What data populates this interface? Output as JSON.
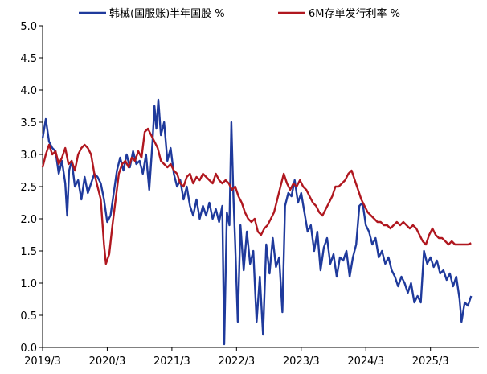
{
  "chart_data": {
    "type": "line",
    "title": "",
    "xlabel": "",
    "ylabel": "",
    "ylim": [
      0,
      5
    ],
    "yticks": [
      "0.0",
      "0.5",
      "1.0",
      "1.5",
      "2.0",
      "2.5",
      "3.0",
      "3.5",
      "4.0",
      "4.5",
      "5.0"
    ],
    "xlim": [
      2019.17,
      2025.92
    ],
    "xticks": [
      {
        "x": 2019.17,
        "label": "2019/3"
      },
      {
        "x": 2020.17,
        "label": "2020/3"
      },
      {
        "x": 2021.17,
        "label": "2021/3"
      },
      {
        "x": 2022.17,
        "label": "2022/3"
      },
      {
        "x": 2023.17,
        "label": "2023/3"
      },
      {
        "x": 2024.17,
        "label": "2024/3"
      },
      {
        "x": 2025.17,
        "label": "2025/3"
      }
    ],
    "grid": false,
    "legend_position": "top",
    "series": [
      {
        "name": "韩械(国服账)半年国股 %",
        "color": "#1F3A9C",
        "points": [
          [
            2019.17,
            3.25
          ],
          [
            2019.22,
            3.55
          ],
          [
            2019.27,
            3.2
          ],
          [
            2019.32,
            3.1
          ],
          [
            2019.37,
            3.05
          ],
          [
            2019.42,
            2.7
          ],
          [
            2019.47,
            2.9
          ],
          [
            2019.52,
            2.55
          ],
          [
            2019.55,
            2.05
          ],
          [
            2019.58,
            2.75
          ],
          [
            2019.62,
            2.9
          ],
          [
            2019.67,
            2.5
          ],
          [
            2019.72,
            2.6
          ],
          [
            2019.77,
            2.3
          ],
          [
            2019.82,
            2.65
          ],
          [
            2019.87,
            2.4
          ],
          [
            2019.92,
            2.55
          ],
          [
            2019.97,
            2.7
          ],
          [
            2020.02,
            2.65
          ],
          [
            2020.07,
            2.55
          ],
          [
            2020.12,
            2.3
          ],
          [
            2020.17,
            1.95
          ],
          [
            2020.22,
            2.05
          ],
          [
            2020.27,
            2.4
          ],
          [
            2020.32,
            2.75
          ],
          [
            2020.37,
            2.95
          ],
          [
            2020.42,
            2.75
          ],
          [
            2020.47,
            3.0
          ],
          [
            2020.52,
            2.8
          ],
          [
            2020.57,
            3.05
          ],
          [
            2020.62,
            2.85
          ],
          [
            2020.67,
            2.9
          ],
          [
            2020.72,
            2.7
          ],
          [
            2020.77,
            3.0
          ],
          [
            2020.82,
            2.45
          ],
          [
            2020.87,
            3.2
          ],
          [
            2020.9,
            3.75
          ],
          [
            2020.93,
            3.4
          ],
          [
            2020.96,
            3.85
          ],
          [
            2021.0,
            3.3
          ],
          [
            2021.05,
            3.5
          ],
          [
            2021.1,
            2.9
          ],
          [
            2021.15,
            3.1
          ],
          [
            2021.2,
            2.7
          ],
          [
            2021.25,
            2.5
          ],
          [
            2021.3,
            2.6
          ],
          [
            2021.35,
            2.3
          ],
          [
            2021.4,
            2.5
          ],
          [
            2021.45,
            2.2
          ],
          [
            2021.5,
            2.05
          ],
          [
            2021.55,
            2.3
          ],
          [
            2021.6,
            2.0
          ],
          [
            2021.65,
            2.2
          ],
          [
            2021.7,
            2.05
          ],
          [
            2021.75,
            2.25
          ],
          [
            2021.8,
            2.0
          ],
          [
            2021.85,
            2.15
          ],
          [
            2021.9,
            1.95
          ],
          [
            2021.95,
            2.2
          ],
          [
            2021.98,
            0.05
          ],
          [
            2022.02,
            2.1
          ],
          [
            2022.06,
            1.9
          ],
          [
            2022.09,
            3.5
          ],
          [
            2022.12,
            2.4
          ],
          [
            2022.15,
            1.6
          ],
          [
            2022.19,
            0.4
          ],
          [
            2022.23,
            1.9
          ],
          [
            2022.28,
            1.2
          ],
          [
            2022.33,
            1.8
          ],
          [
            2022.38,
            1.3
          ],
          [
            2022.43,
            1.5
          ],
          [
            2022.48,
            0.4
          ],
          [
            2022.53,
            1.1
          ],
          [
            2022.58,
            0.2
          ],
          [
            2022.63,
            1.6
          ],
          [
            2022.68,
            1.15
          ],
          [
            2022.73,
            1.7
          ],
          [
            2022.78,
            1.25
          ],
          [
            2022.83,
            1.4
          ],
          [
            2022.88,
            0.55
          ],
          [
            2022.92,
            2.2
          ],
          [
            2022.97,
            2.4
          ],
          [
            2023.02,
            2.35
          ],
          [
            2023.07,
            2.6
          ],
          [
            2023.12,
            2.25
          ],
          [
            2023.17,
            2.4
          ],
          [
            2023.22,
            2.1
          ],
          [
            2023.27,
            1.8
          ],
          [
            2023.32,
            1.9
          ],
          [
            2023.37,
            1.5
          ],
          [
            2023.42,
            1.8
          ],
          [
            2023.47,
            1.2
          ],
          [
            2023.52,
            1.55
          ],
          [
            2023.57,
            1.7
          ],
          [
            2023.62,
            1.3
          ],
          [
            2023.67,
            1.45
          ],
          [
            2023.72,
            1.1
          ],
          [
            2023.77,
            1.4
          ],
          [
            2023.82,
            1.35
          ],
          [
            2023.87,
            1.5
          ],
          [
            2023.92,
            1.1
          ],
          [
            2023.97,
            1.4
          ],
          [
            2024.02,
            1.6
          ],
          [
            2024.07,
            2.2
          ],
          [
            2024.12,
            2.25
          ],
          [
            2024.17,
            1.9
          ],
          [
            2024.22,
            1.8
          ],
          [
            2024.27,
            1.6
          ],
          [
            2024.32,
            1.7
          ],
          [
            2024.37,
            1.4
          ],
          [
            2024.42,
            1.5
          ],
          [
            2024.47,
            1.3
          ],
          [
            2024.52,
            1.4
          ],
          [
            2024.57,
            1.2
          ],
          [
            2024.62,
            1.1
          ],
          [
            2024.67,
            0.95
          ],
          [
            2024.72,
            1.1
          ],
          [
            2024.77,
            1.0
          ],
          [
            2024.82,
            0.85
          ],
          [
            2024.87,
            1.0
          ],
          [
            2024.92,
            0.7
          ],
          [
            2024.97,
            0.8
          ],
          [
            2025.02,
            0.7
          ],
          [
            2025.07,
            1.5
          ],
          [
            2025.12,
            1.3
          ],
          [
            2025.17,
            1.4
          ],
          [
            2025.22,
            1.25
          ],
          [
            2025.27,
            1.35
          ],
          [
            2025.32,
            1.15
          ],
          [
            2025.37,
            1.2
          ],
          [
            2025.42,
            1.05
          ],
          [
            2025.47,
            1.15
          ],
          [
            2025.52,
            0.95
          ],
          [
            2025.57,
            1.1
          ],
          [
            2025.62,
            0.75
          ],
          [
            2025.65,
            0.4
          ],
          [
            2025.7,
            0.7
          ],
          [
            2025.75,
            0.65
          ],
          [
            2025.8,
            0.8
          ]
        ]
      },
      {
        "name": "6M存单发行利率 %",
        "color": "#B0171F",
        "points": [
          [
            2019.17,
            2.8
          ],
          [
            2019.22,
            3.0
          ],
          [
            2019.27,
            3.15
          ],
          [
            2019.32,
            3.0
          ],
          [
            2019.37,
            3.05
          ],
          [
            2019.42,
            2.85
          ],
          [
            2019.47,
            2.95
          ],
          [
            2019.52,
            3.1
          ],
          [
            2019.57,
            2.85
          ],
          [
            2019.62,
            2.9
          ],
          [
            2019.67,
            2.75
          ],
          [
            2019.72,
            3.0
          ],
          [
            2019.77,
            3.1
          ],
          [
            2019.82,
            3.15
          ],
          [
            2019.87,
            3.1
          ],
          [
            2019.92,
            3.0
          ],
          [
            2019.97,
            2.7
          ],
          [
            2020.02,
            2.5
          ],
          [
            2020.07,
            2.3
          ],
          [
            2020.12,
            1.6
          ],
          [
            2020.15,
            1.3
          ],
          [
            2020.2,
            1.45
          ],
          [
            2020.25,
            1.9
          ],
          [
            2020.3,
            2.3
          ],
          [
            2020.35,
            2.7
          ],
          [
            2020.4,
            2.85
          ],
          [
            2020.45,
            2.9
          ],
          [
            2020.5,
            2.8
          ],
          [
            2020.55,
            2.95
          ],
          [
            2020.6,
            2.9
          ],
          [
            2020.65,
            3.05
          ],
          [
            2020.7,
            2.95
          ],
          [
            2020.75,
            3.35
          ],
          [
            2020.8,
            3.4
          ],
          [
            2020.85,
            3.3
          ],
          [
            2020.9,
            3.2
          ],
          [
            2020.95,
            3.1
          ],
          [
            2021.0,
            2.9
          ],
          [
            2021.05,
            2.85
          ],
          [
            2021.1,
            2.8
          ],
          [
            2021.15,
            2.85
          ],
          [
            2021.2,
            2.75
          ],
          [
            2021.25,
            2.7
          ],
          [
            2021.3,
            2.55
          ],
          [
            2021.35,
            2.5
          ],
          [
            2021.4,
            2.65
          ],
          [
            2021.45,
            2.7
          ],
          [
            2021.5,
            2.55
          ],
          [
            2021.55,
            2.65
          ],
          [
            2021.6,
            2.6
          ],
          [
            2021.65,
            2.7
          ],
          [
            2021.7,
            2.65
          ],
          [
            2021.75,
            2.6
          ],
          [
            2021.8,
            2.55
          ],
          [
            2021.85,
            2.7
          ],
          [
            2021.9,
            2.6
          ],
          [
            2021.95,
            2.55
          ],
          [
            2022.0,
            2.6
          ],
          [
            2022.05,
            2.55
          ],
          [
            2022.1,
            2.45
          ],
          [
            2022.15,
            2.5
          ],
          [
            2022.2,
            2.35
          ],
          [
            2022.25,
            2.25
          ],
          [
            2022.3,
            2.1
          ],
          [
            2022.35,
            2.0
          ],
          [
            2022.4,
            1.95
          ],
          [
            2022.45,
            2.0
          ],
          [
            2022.5,
            1.8
          ],
          [
            2022.55,
            1.75
          ],
          [
            2022.6,
            1.85
          ],
          [
            2022.65,
            1.9
          ],
          [
            2022.7,
            2.0
          ],
          [
            2022.75,
            2.1
          ],
          [
            2022.8,
            2.3
          ],
          [
            2022.85,
            2.5
          ],
          [
            2022.9,
            2.7
          ],
          [
            2022.95,
            2.55
          ],
          [
            2023.0,
            2.45
          ],
          [
            2023.05,
            2.55
          ],
          [
            2023.1,
            2.5
          ],
          [
            2023.15,
            2.6
          ],
          [
            2023.2,
            2.5
          ],
          [
            2023.25,
            2.45
          ],
          [
            2023.3,
            2.35
          ],
          [
            2023.35,
            2.25
          ],
          [
            2023.4,
            2.2
          ],
          [
            2023.45,
            2.1
          ],
          [
            2023.5,
            2.05
          ],
          [
            2023.55,
            2.15
          ],
          [
            2023.6,
            2.25
          ],
          [
            2023.65,
            2.35
          ],
          [
            2023.7,
            2.5
          ],
          [
            2023.75,
            2.5
          ],
          [
            2023.8,
            2.55
          ],
          [
            2023.85,
            2.6
          ],
          [
            2023.9,
            2.7
          ],
          [
            2023.95,
            2.75
          ],
          [
            2024.0,
            2.6
          ],
          [
            2024.05,
            2.45
          ],
          [
            2024.1,
            2.3
          ],
          [
            2024.15,
            2.2
          ],
          [
            2024.2,
            2.1
          ],
          [
            2024.25,
            2.05
          ],
          [
            2024.3,
            2.0
          ],
          [
            2024.35,
            1.95
          ],
          [
            2024.4,
            1.95
          ],
          [
            2024.45,
            1.9
          ],
          [
            2024.5,
            1.9
          ],
          [
            2024.55,
            1.85
          ],
          [
            2024.6,
            1.9
          ],
          [
            2024.65,
            1.95
          ],
          [
            2024.7,
            1.9
          ],
          [
            2024.75,
            1.95
          ],
          [
            2024.8,
            1.9
          ],
          [
            2024.85,
            1.85
          ],
          [
            2024.9,
            1.9
          ],
          [
            2024.95,
            1.85
          ],
          [
            2025.0,
            1.75
          ],
          [
            2025.05,
            1.65
          ],
          [
            2025.1,
            1.6
          ],
          [
            2025.15,
            1.75
          ],
          [
            2025.2,
            1.85
          ],
          [
            2025.25,
            1.75
          ],
          [
            2025.3,
            1.7
          ],
          [
            2025.35,
            1.7
          ],
          [
            2025.4,
            1.65
          ],
          [
            2025.45,
            1.6
          ],
          [
            2025.5,
            1.65
          ],
          [
            2025.55,
            1.6
          ],
          [
            2025.6,
            1.6
          ],
          [
            2025.65,
            1.6
          ],
          [
            2025.7,
            1.6
          ],
          [
            2025.75,
            1.6
          ],
          [
            2025.8,
            1.62
          ]
        ]
      }
    ]
  }
}
